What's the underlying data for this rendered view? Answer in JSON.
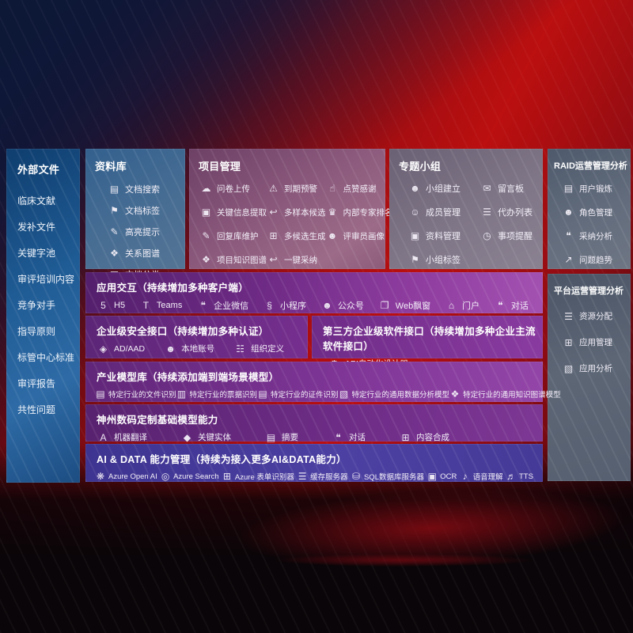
{
  "sidebar": {
    "title": "外部文件",
    "items": [
      "临床文献",
      "发补文件",
      "关键字池",
      "审评培训内容",
      "竞争对手",
      "指导原则",
      "标管中心标准",
      "审评报告",
      "共性问题"
    ]
  },
  "boxes": {
    "repository": {
      "title": "资料库",
      "items": [
        {
          "icon": "doc-search",
          "label": "文档搜索"
        },
        {
          "icon": "doc-tag",
          "label": "文档标签"
        },
        {
          "icon": "highlight-pen",
          "label": "高亮提示"
        },
        {
          "icon": "relation-graph",
          "label": "关系图谱"
        },
        {
          "icon": "doc-classify",
          "label": "文档分类"
        }
      ]
    },
    "project": {
      "title": "项目管理",
      "col1": [
        {
          "icon": "cloud-upload",
          "label": "问卷上传"
        },
        {
          "icon": "key-info",
          "label": "关键信息提取"
        },
        {
          "icon": "edit-pen",
          "label": "回复库维护"
        },
        {
          "icon": "knowledge-graph",
          "label": "项目知识图谱"
        }
      ],
      "col2": [
        {
          "icon": "alarm",
          "label": "到期预警"
        },
        {
          "icon": "reply-arrow",
          "label": "多样本候选"
        },
        {
          "icon": "grid-generate",
          "label": "多候选生成"
        },
        {
          "icon": "adopt-arrow",
          "label": "一键采纳"
        }
      ],
      "col3": [
        {
          "icon": "thumbs-up",
          "label": "点赞感谢"
        },
        {
          "icon": "ranking",
          "label": "内部专家排名"
        },
        {
          "icon": "person",
          "label": "评审员画像"
        }
      ]
    },
    "groups": {
      "title": "专题小组",
      "col1": [
        {
          "icon": "people",
          "label": "小组建立"
        },
        {
          "icon": "person-add",
          "label": "成员管理"
        },
        {
          "icon": "folder-image",
          "label": "资料管理"
        },
        {
          "icon": "tag",
          "label": "小组标签"
        }
      ],
      "col2": [
        {
          "icon": "bbs-board",
          "label": "留言板"
        },
        {
          "icon": "clipboard-list",
          "label": "代办列表"
        },
        {
          "icon": "bell",
          "label": "事项提醒"
        }
      ]
    },
    "raid": {
      "title": "RAID运营管理分析",
      "items": [
        {
          "icon": "id-card",
          "label": "用户锻炼"
        },
        {
          "icon": "people",
          "label": "角色管理"
        },
        {
          "icon": "chat-analysis",
          "label": "采纳分析"
        },
        {
          "icon": "trend-chart",
          "label": "问题趋势"
        }
      ]
    },
    "platform": {
      "title": "平台运营管理分析",
      "items": [
        {
          "icon": "list-allocate",
          "label": "资源分配"
        },
        {
          "icon": "app-grid",
          "label": "应用管理"
        },
        {
          "icon": "chart-box",
          "label": "应用分析"
        }
      ]
    }
  },
  "rows": {
    "interaction": {
      "title": "应用交互（持续增加多种客户端）",
      "items": [
        {
          "icon": "h5-logo",
          "label": "H5"
        },
        {
          "icon": "teams-logo",
          "label": "Teams"
        },
        {
          "icon": "chat-bubble",
          "label": "企业微信"
        },
        {
          "icon": "miniprogram-logo",
          "label": "小程序"
        },
        {
          "icon": "people",
          "label": "公众号"
        },
        {
          "icon": "browser-window",
          "label": "Web飘窗"
        },
        {
          "icon": "portal-door",
          "label": "门户"
        },
        {
          "icon": "dialog-bubbles",
          "label": "对话"
        }
      ]
    },
    "security": {
      "title": "企业级安全接口（持续增加多种认证）",
      "items": [
        {
          "icon": "shield-ad",
          "label": "AD/AAD"
        },
        {
          "icon": "person-account",
          "label": "本地账号"
        },
        {
          "icon": "org-people",
          "label": "组织定义"
        }
      ]
    },
    "third_party": {
      "title": "第三方企业级软件接口（持续增加多种企业主流软件接口）",
      "items": [
        {
          "icon": "gear-api",
          "label": "API自动化设计器"
        }
      ]
    },
    "industry_models": {
      "title": "产业模型库（持续添加端到端场景模型）",
      "items": [
        {
          "icon": "doc-file",
          "label": "特定行业的文件识别"
        },
        {
          "icon": "receipt",
          "label": "特定行业的票据识别"
        },
        {
          "icon": "id-card",
          "label": "特定行业的证件识别"
        },
        {
          "icon": "image-chart",
          "label": "特定行业的通用数据分析模型"
        },
        {
          "icon": "knowledge-graph",
          "label": "特定行业的通用知识图谱模型"
        }
      ]
    },
    "base_models": {
      "title": "神州数码定制基础模型能力",
      "items": [
        {
          "icon": "translate",
          "label": "机器翻译"
        },
        {
          "icon": "entity-shield",
          "label": "关键实体"
        },
        {
          "icon": "summary-doc",
          "label": "摘要"
        },
        {
          "icon": "dialog-bubbles",
          "label": "对话"
        },
        {
          "icon": "content-grid",
          "label": "内容合成"
        }
      ]
    },
    "ai_data": {
      "title": "AI & DATA 能力管理（持续为接入更多AI&DATA能力）",
      "items": [
        {
          "icon": "openai-flower",
          "label": "Azure Open AI"
        },
        {
          "icon": "search-doc",
          "label": "Azure Search"
        },
        {
          "icon": "form-scan",
          "label": "Azure 表单识别器"
        },
        {
          "icon": "cache-server",
          "label": "缓存服务器"
        },
        {
          "icon": "database",
          "label": "SQL数据库服务器"
        },
        {
          "icon": "ocr-frame",
          "label": "OCR"
        },
        {
          "icon": "speech-mic",
          "label": "语音理解"
        },
        {
          "icon": "tts-speaker",
          "label": "TTS"
        }
      ]
    }
  },
  "icon_glyphs": {
    "doc-search": "▤",
    "doc-tag": "⚑",
    "highlight-pen": "✎",
    "relation-graph": "❖",
    "doc-classify": "▦",
    "cloud-upload": "☁",
    "key-info": "▣",
    "edit-pen": "✎",
    "knowledge-graph": "❖",
    "alarm": "⚠",
    "reply-arrow": "↩",
    "grid-generate": "⊞",
    "adopt-arrow": "↩",
    "thumbs-up": "☝",
    "ranking": "♛",
    "person": "☻",
    "people": "☻",
    "person-add": "☺",
    "folder-image": "▣",
    "tag": "⚑",
    "bbs-board": "✉",
    "clipboard-list": "☰",
    "bell": "◷",
    "id-card": "▤",
    "chat-analysis": "❝",
    "trend-chart": "↗",
    "list-allocate": "☰",
    "app-grid": "⊞",
    "chart-box": "▧",
    "h5-logo": "5",
    "teams-logo": "T",
    "chat-bubble": "❝",
    "miniprogram-logo": "§",
    "browser-window": "❐",
    "portal-door": "⌂",
    "dialog-bubbles": "❝",
    "shield-ad": "◈",
    "person-account": "☻",
    "org-people": "☷",
    "gear-api": "⚙",
    "doc-file": "▤",
    "receipt": "▥",
    "image-chart": "▧",
    "translate": "A",
    "entity-shield": "◆",
    "summary-doc": "▤",
    "content-grid": "⊞",
    "openai-flower": "❋",
    "search-doc": "◎",
    "form-scan": "⊞",
    "cache-server": "☰",
    "database": "⛁",
    "ocr-frame": "▣",
    "speech-mic": "♪",
    "tts-speaker": "♬"
  },
  "colors": {
    "background_red": "#bb0f10",
    "corner_navy": "#101f46",
    "sidebar_blue": "#1f5b94",
    "repo_steel_blue": "#476d93",
    "project_mauve": "#8a587b",
    "groups_gray_purple": "#7f7687",
    "raid_slate": "#626c7c",
    "row_purple": "#7c3390",
    "ai_indigo": "#4c40a2",
    "text": "#ffffff"
  }
}
